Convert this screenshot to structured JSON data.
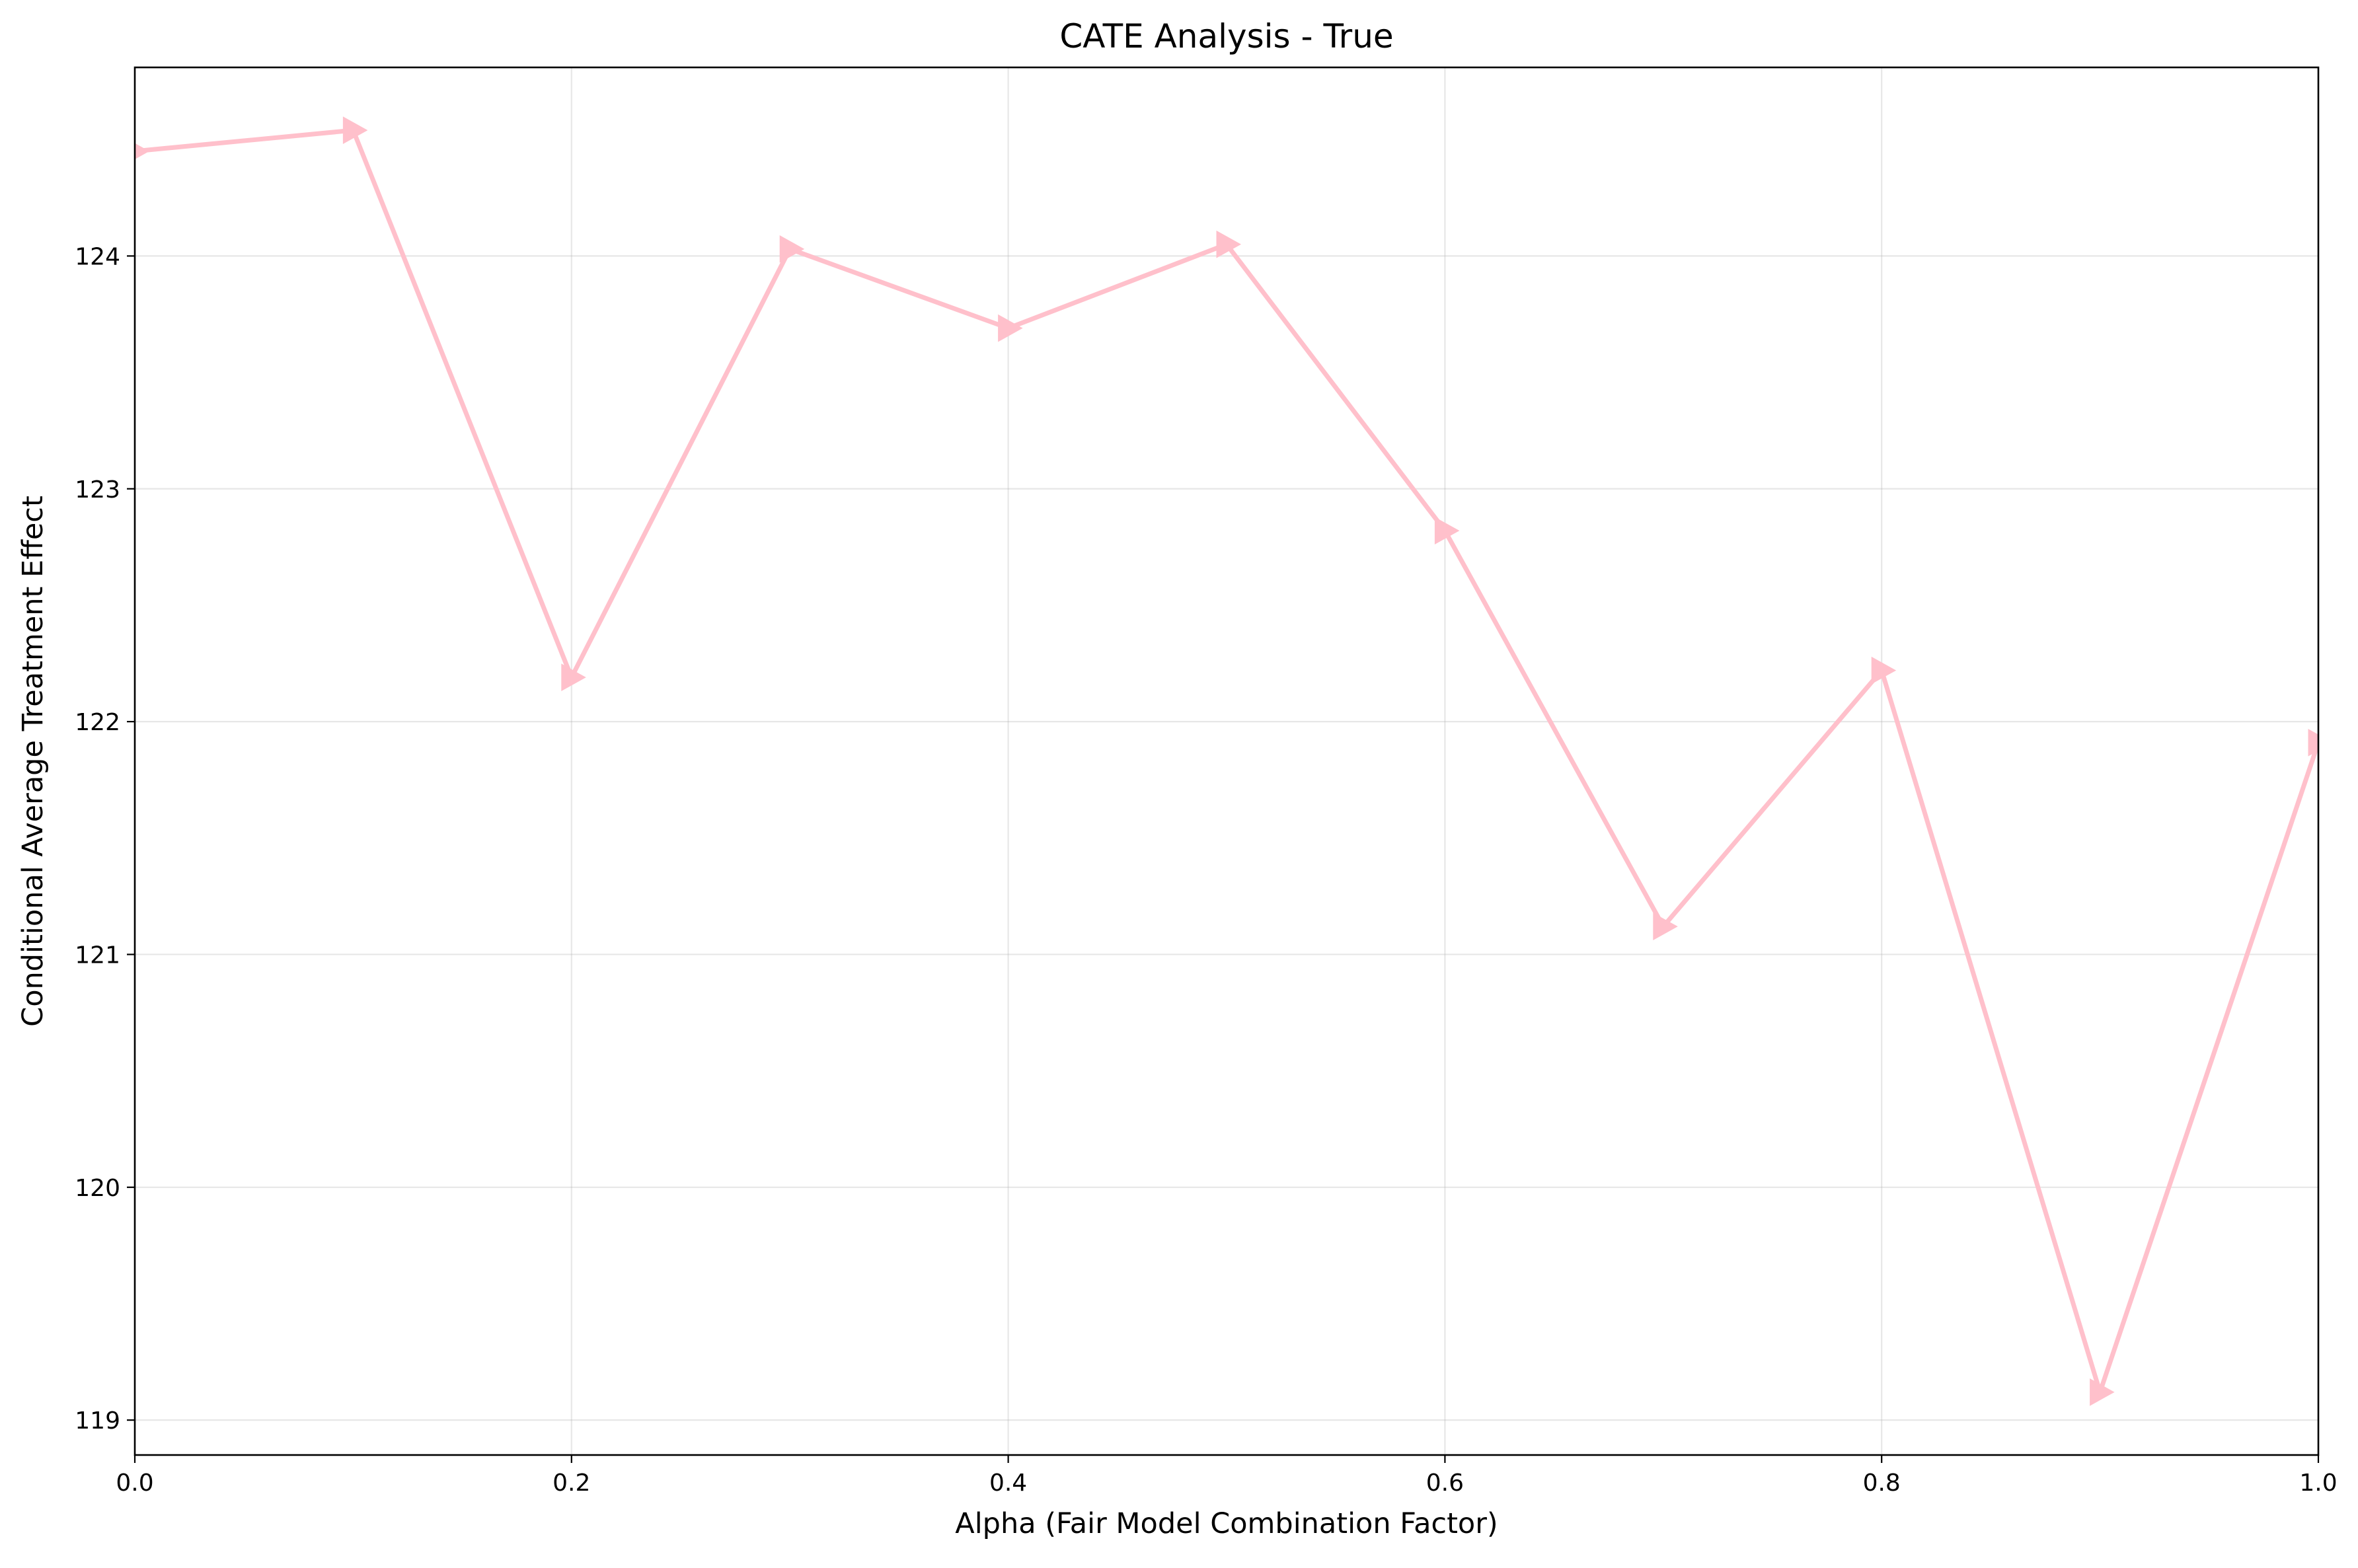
{
  "chart_data": {
    "type": "line",
    "title": "CATE Analysis - True",
    "xlabel": "Alpha (Fair Model Combination Factor)",
    "ylabel": "Conditional Average Treatment Effect",
    "xlim": [
      0.0,
      1.0
    ],
    "ylim": [
      118.85,
      124.81
    ],
    "grid": true,
    "x_ticks": [
      0.0,
      0.2,
      0.4,
      0.6,
      0.8,
      1.0
    ],
    "x_tick_labels": [
      "0.0",
      "0.2",
      "0.4",
      "0.6",
      "0.8",
      "1.0"
    ],
    "y_ticks": [
      119,
      120,
      121,
      122,
      123,
      124
    ],
    "y_tick_labels": [
      "119",
      "120",
      "121",
      "122",
      "123",
      "124"
    ],
    "series": [
      {
        "name": "CATE",
        "color": "#ffc0cb",
        "marker": "triangle-right",
        "x": [
          0.0,
          0.1,
          0.2,
          0.3,
          0.4,
          0.5,
          0.6,
          0.7,
          0.8,
          0.9,
          1.0
        ],
        "values": [
          124.45,
          124.54,
          122.19,
          124.03,
          123.69,
          124.05,
          122.82,
          121.12,
          122.22,
          119.12,
          121.91
        ]
      }
    ]
  }
}
